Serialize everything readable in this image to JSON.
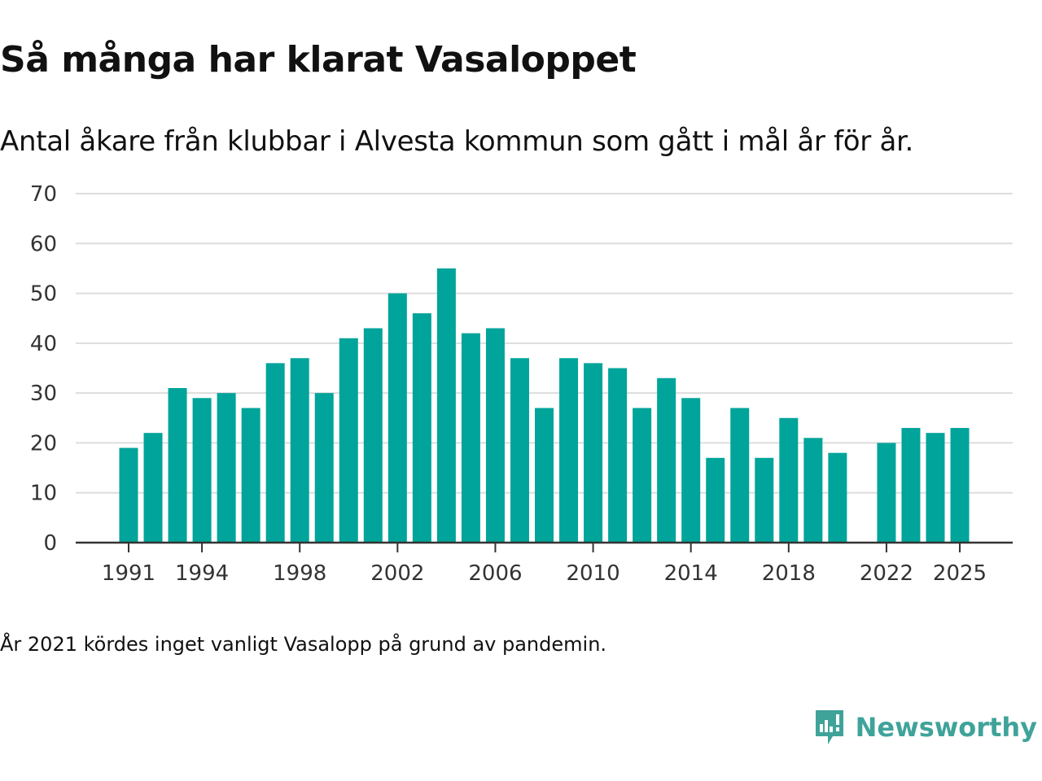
{
  "header": {
    "title": "Så många har klarat Vasaloppet",
    "subtitle": "Antal åkare från klubbar i Alvesta kommun som gått i mål år för år."
  },
  "footer": {
    "note": "År 2021 kördes inget vanligt Vasalopp på grund av pandemin.",
    "brand": "Newsworthy"
  },
  "colors": {
    "bar": "#00a49a",
    "grid": "#dddddd",
    "axis": "#333333",
    "brand": "#3fa39a"
  },
  "chart_data": {
    "type": "bar",
    "title": "Så många har klarat Vasaloppet",
    "subtitle": "Antal åkare från klubbar i Alvesta kommun som gått i mål år för år.",
    "xlabel": "",
    "ylabel": "",
    "ylim": [
      0,
      70
    ],
    "yticks": [
      0,
      10,
      20,
      30,
      40,
      50,
      60,
      70
    ],
    "xticks": [
      1991,
      1994,
      1998,
      2002,
      2006,
      2010,
      2014,
      2018,
      2022,
      2025
    ],
    "grid": true,
    "x": [
      1991,
      1992,
      1993,
      1994,
      1995,
      1996,
      1997,
      1998,
      1999,
      2000,
      2001,
      2002,
      2003,
      2004,
      2005,
      2006,
      2007,
      2008,
      2009,
      2010,
      2011,
      2012,
      2013,
      2014,
      2015,
      2016,
      2017,
      2018,
      2019,
      2020,
      2021,
      2022,
      2023,
      2024,
      2025
    ],
    "values": [
      19,
      22,
      31,
      29,
      30,
      27,
      36,
      37,
      30,
      41,
      43,
      50,
      46,
      55,
      42,
      43,
      37,
      27,
      37,
      36,
      35,
      27,
      33,
      29,
      17,
      27,
      17,
      25,
      21,
      18,
      null,
      20,
      23,
      22,
      23
    ]
  }
}
